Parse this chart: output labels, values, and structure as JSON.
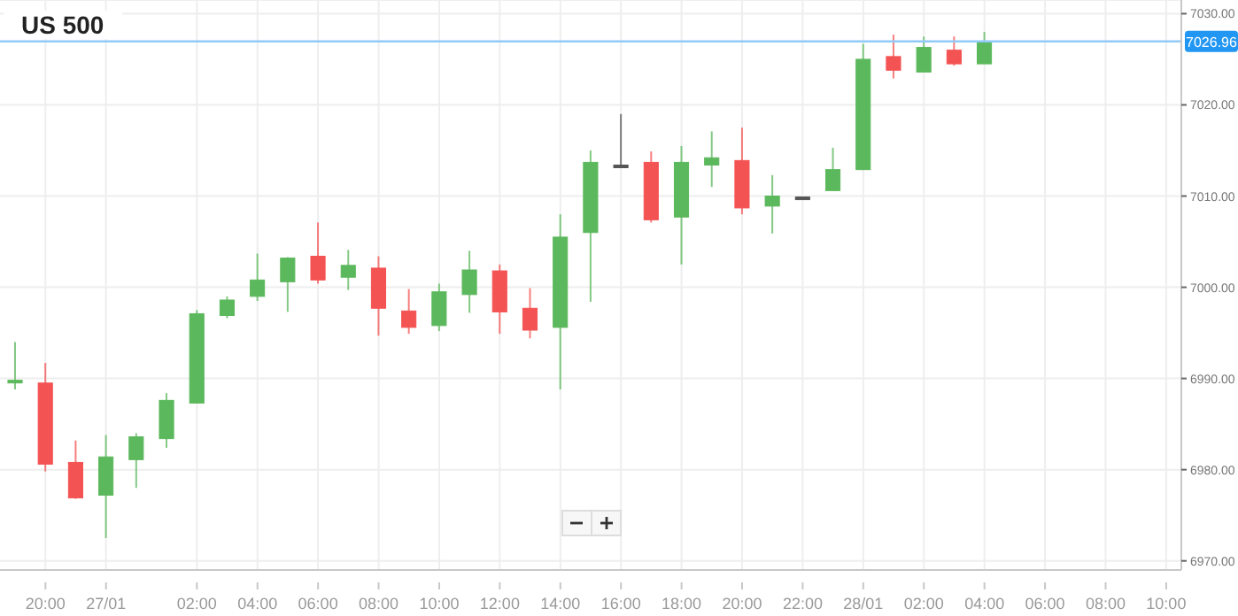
{
  "chart_data": {
    "type": "candlestick",
    "title": "US 500",
    "categories": [
      null,
      "20:00",
      null,
      "27/01",
      null,
      null,
      "02:00",
      null,
      "04:00",
      null,
      "06:00",
      null,
      "08:00",
      null,
      "10:00",
      null,
      "12:00",
      null,
      "14:00",
      null,
      "16:00",
      null,
      "18:00",
      null,
      "20:00",
      null,
      "22:00",
      null,
      "28/01",
      null,
      "02:00",
      null,
      "04:00",
      null,
      "06:00",
      null,
      "08:00",
      null,
      "10:00"
    ],
    "ohlc": [
      [
        6989.6,
        6994.0,
        6988.8,
        6989.8
      ],
      [
        6989.5,
        6991.7,
        6979.8,
        6980.6
      ],
      [
        6980.8,
        6983.2,
        6976.8,
        6976.9
      ],
      [
        6977.2,
        6983.8,
        6972.5,
        6981.4
      ],
      [
        6981.1,
        6984.0,
        6978.0,
        6983.6
      ],
      [
        6983.4,
        6988.4,
        6982.4,
        6987.6
      ],
      [
        6987.3,
        6997.5,
        6987.3,
        6997.1
      ],
      [
        6996.9,
        6999.0,
        6996.6,
        6998.6
      ],
      [
        6999.0,
        7003.7,
        6998.5,
        7000.8
      ],
      [
        7000.6,
        7003.3,
        6997.3,
        7003.2
      ],
      [
        7003.4,
        7007.1,
        7000.4,
        7000.8
      ],
      [
        7001.1,
        7004.1,
        6999.7,
        7002.4
      ],
      [
        7002.1,
        7003.4,
        6994.7,
        6997.7
      ],
      [
        6997.4,
        6999.8,
        6994.9,
        6995.6
      ],
      [
        6995.8,
        7000.4,
        6995.2,
        6999.5
      ],
      [
        6999.2,
        7004.0,
        6997.2,
        7001.9
      ],
      [
        7001.8,
        7002.5,
        6994.9,
        6997.3
      ],
      [
        6997.7,
        6999.9,
        6994.4,
        6995.3
      ],
      [
        6995.6,
        7008.0,
        6988.8,
        7005.5
      ],
      [
        7006.0,
        7015.0,
        6998.4,
        7013.7
      ],
      [
        7013.4,
        7019.0,
        7013.3,
        7013.4
      ],
      [
        7013.7,
        7014.9,
        7007.1,
        7007.4
      ],
      [
        7007.7,
        7015.5,
        7002.5,
        7013.7
      ],
      [
        7013.4,
        7017.1,
        7011.0,
        7014.2
      ],
      [
        7013.9,
        7017.5,
        7008.0,
        7008.7
      ],
      [
        7008.9,
        7012.3,
        7005.9,
        7010.0
      ],
      [
        7009.9,
        7009.9,
        7009.9,
        7009.9
      ],
      [
        7010.6,
        7015.3,
        7010.6,
        7012.9
      ],
      [
        7012.9,
        7026.7,
        7012.9,
        7025.0
      ],
      [
        7025.3,
        7027.7,
        7022.9,
        7023.8
      ],
      [
        7023.6,
        7027.5,
        7023.6,
        7026.3
      ],
      [
        7026.0,
        7027.5,
        7024.3,
        7024.5
      ],
      [
        7024.5,
        7028.0,
        7024.5,
        7026.96
      ],
      null,
      null,
      null,
      null,
      null,
      null
    ],
    "colors": [
      "#5cb85c",
      "#f45353",
      "#f45353",
      "#5cb85c",
      "#5cb85c",
      "#5cb85c",
      "#5cb85c",
      "#5cb85c",
      "#5cb85c",
      "#5cb85c",
      "#f45353",
      "#5cb85c",
      "#f45353",
      "#f45353",
      "#5cb85c",
      "#5cb85c",
      "#f45353",
      "#f45353",
      "#5cb85c",
      "#5cb85c",
      "#555555",
      "#f45353",
      "#5cb85c",
      "#5cb85c",
      "#f45353",
      "#5cb85c",
      "#555555",
      "#5cb85c",
      "#5cb85c",
      "#f45353",
      "#5cb85c",
      "#f45353",
      "#5cb85c",
      null,
      null,
      null,
      null,
      null,
      null
    ],
    "ylim": [
      6969,
      7031.5
    ],
    "yticks": [
      {
        "value": 6970,
        "label": "6970.00"
      },
      {
        "value": 6980,
        "label": "6980.00"
      },
      {
        "value": 6990,
        "label": "6990.00"
      },
      {
        "value": 7000,
        "label": "7000.00"
      },
      {
        "value": 7010,
        "label": "7010.00"
      },
      {
        "value": 7020,
        "label": "7020.00"
      },
      {
        "value": 7030,
        "label": "7030.00"
      }
    ],
    "ref_lines": [
      {
        "axis": "y",
        "value": 7026.96,
        "label": "7026.96",
        "color": "#90caf9"
      }
    ],
    "grid": true
  }
}
